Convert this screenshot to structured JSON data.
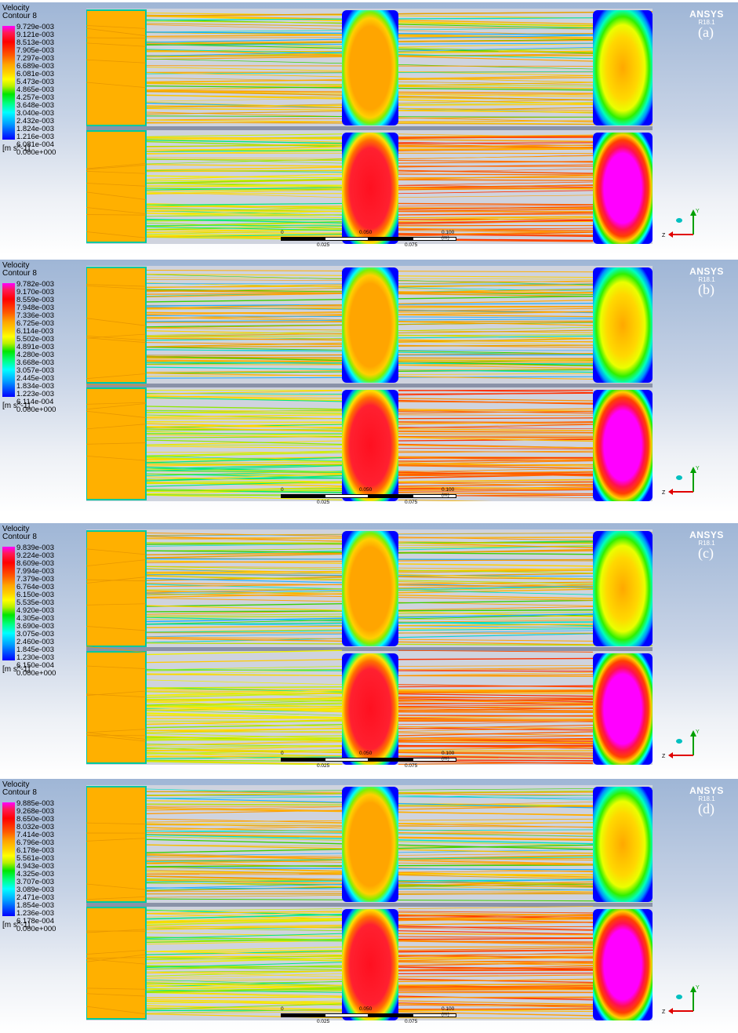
{
  "panels": [
    {
      "label": "(a)",
      "legend": {
        "title": "Velocity",
        "subtitle": "Contour 8",
        "unit": "[m s^-1]",
        "ticks": [
          "9.729e-003",
          "9.121e-003",
          "8.513e-003",
          "7.905e-003",
          "7.297e-003",
          "6.689e-003",
          "6.081e-003",
          "5.473e-003",
          "4.865e-003",
          "4.257e-003",
          "3.648e-003",
          "3.040e-003",
          "2.432e-003",
          "1.824e-003",
          "1.216e-003",
          "6.081e-004",
          "0.000e+000"
        ]
      }
    },
    {
      "label": "(b)",
      "legend": {
        "title": "Velocity",
        "subtitle": "Contour 8",
        "unit": "[m s^-1]",
        "ticks": [
          "9.782e-003",
          "9.170e-003",
          "8.559e-003",
          "7.948e-003",
          "7.336e-003",
          "6.725e-003",
          "6.114e-003",
          "5.502e-003",
          "4.891e-003",
          "4.280e-003",
          "3.668e-003",
          "3.057e-003",
          "2.445e-003",
          "1.834e-003",
          "1.223e-003",
          "6.114e-004",
          "0.000e+000"
        ]
      }
    },
    {
      "label": "(c)",
      "legend": {
        "title": "Velocity",
        "subtitle": "Contour 8",
        "unit": "[m s^-1]",
        "ticks": [
          "9.839e-003",
          "9.224e-003",
          "8.609e-003",
          "7.994e-003",
          "7.379e-003",
          "6.764e-003",
          "6.150e-003",
          "5.535e-003",
          "4.920e-003",
          "4.305e-003",
          "3.690e-003",
          "3.075e-003",
          "2.460e-003",
          "1.845e-003",
          "1.230e-003",
          "6.150e-004",
          "0.000e+000"
        ]
      }
    },
    {
      "label": "(d)",
      "legend": {
        "title": "Velocity",
        "subtitle": "Contour 8",
        "unit": "[m s^-1]",
        "ticks": [
          "9.885e-003",
          "9.268e-003",
          "8.650e-003",
          "8.032e-003",
          "7.414e-003",
          "6.796e-003",
          "6.178e-003",
          "5.561e-003",
          "4.943e-003",
          "4.325e-003",
          "3.707e-003",
          "3.089e-003",
          "2.471e-003",
          "1.854e-003",
          "1.236e-003",
          "6.178e-004",
          "0.000e+000"
        ]
      }
    }
  ],
  "branding": {
    "name": "ANSYS",
    "version": "R18.1"
  },
  "scale_bar": {
    "labels_top": [
      "0",
      "0.050",
      "0.100 (m)"
    ],
    "labels_bottom": [
      "0.025",
      "0.075"
    ]
  },
  "axes_triad": {
    "y": "Y",
    "z": "Z"
  },
  "colors": {
    "magenta": "#ff00ff",
    "red": "#ff0000",
    "orange": "#ffa500",
    "yellow": "#ffff00",
    "green": "#00e600",
    "cyan": "#00ffff",
    "blue": "#0000ff",
    "streamline_bg": "#c8ccd8"
  }
}
